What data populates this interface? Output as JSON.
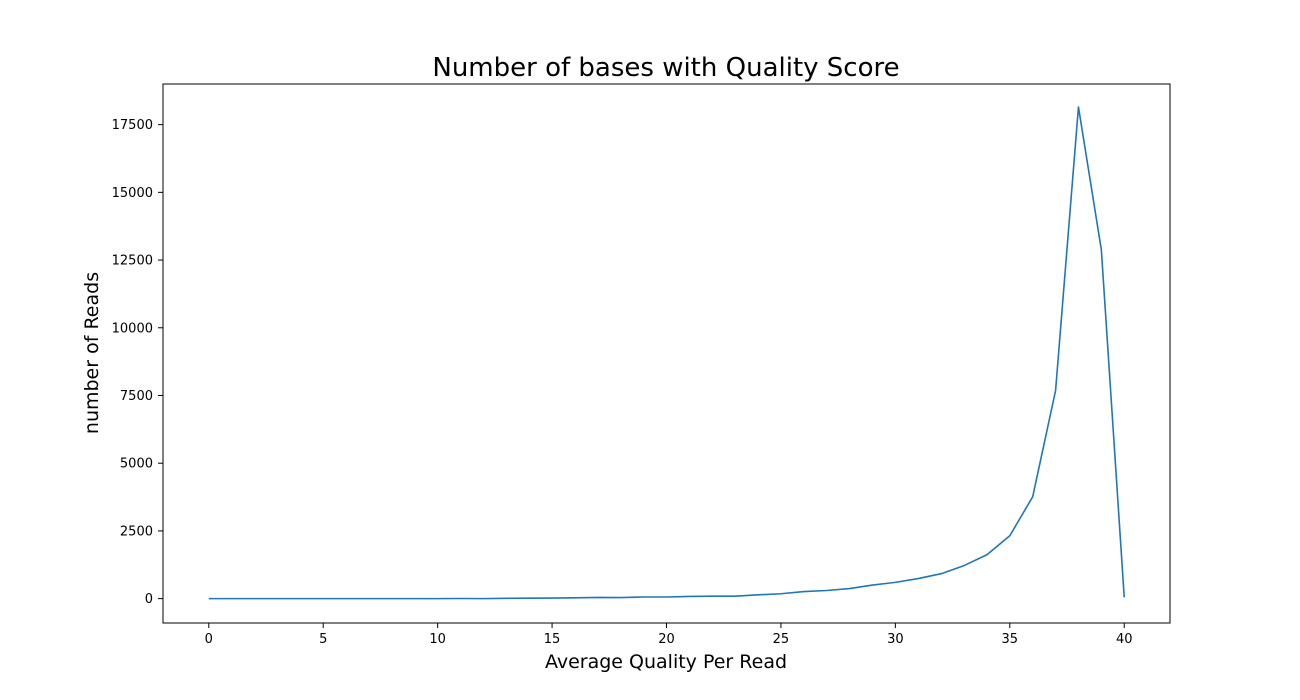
{
  "chart_data": {
    "type": "line",
    "title": "Number of bases with Quality Score",
    "xlabel": "Average Quality Per Read",
    "ylabel": "number of Reads",
    "xlim": [
      -2,
      42
    ],
    "ylim": [
      -900,
      19000
    ],
    "x_ticks": [
      0,
      5,
      10,
      15,
      20,
      25,
      30,
      35,
      40
    ],
    "y_ticks": [
      0,
      2500,
      5000,
      7500,
      10000,
      12500,
      15000,
      17500
    ],
    "grid": false,
    "series": [
      {
        "color": "#1f77b4",
        "x": [
          0,
          1,
          2,
          3,
          4,
          5,
          6,
          7,
          8,
          9,
          10,
          11,
          12,
          13,
          14,
          15,
          16,
          17,
          18,
          19,
          20,
          21,
          22,
          23,
          24,
          25,
          26,
          27,
          28,
          29,
          30,
          31,
          32,
          33,
          34,
          35,
          36,
          37,
          38,
          39,
          40
        ],
        "y": [
          0,
          0,
          0,
          0,
          0,
          0,
          0,
          0,
          0,
          0,
          0,
          5,
          0,
          10,
          15,
          20,
          30,
          45,
          40,
          60,
          60,
          80,
          90,
          90,
          140,
          180,
          260,
          300,
          370,
          500,
          600,
          740,
          920,
          1220,
          1620,
          2320,
          3760,
          7680,
          18150,
          12880,
          50
        ]
      }
    ]
  }
}
